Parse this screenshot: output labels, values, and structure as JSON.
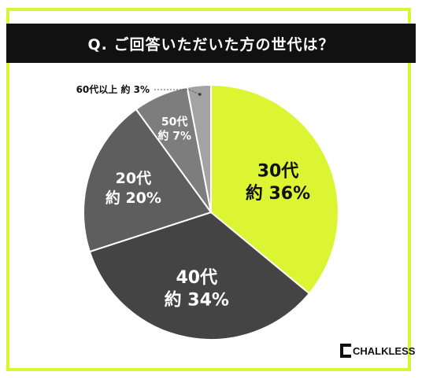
{
  "title": "Q. ご回答いただいた方の世代は？",
  "brand": "CHALKLESS",
  "chart_data": {
    "type": "pie",
    "slices": [
      {
        "category": "30代",
        "value_label": "約 36%",
        "value": 36,
        "color": "#dcf533",
        "text_color": "#111111"
      },
      {
        "category": "40代",
        "value_label": "約 34%",
        "value": 34,
        "color": "#444444",
        "text_color": "#ffffff"
      },
      {
        "category": "20代",
        "value_label": "約 20%",
        "value": 20,
        "color": "#5e5e5e",
        "text_color": "#ffffff"
      },
      {
        "category": "50代",
        "value_label": "約 7%",
        "value": 7,
        "color": "#7d7d7d",
        "text_color": "#ffffff"
      },
      {
        "category": "60代以上",
        "value_label": "約 3%",
        "value": 3,
        "color": "#a3a3a3",
        "text_color": "#111111"
      }
    ]
  }
}
